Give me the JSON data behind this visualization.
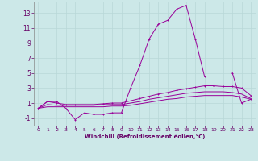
{
  "x": [
    0,
    1,
    2,
    3,
    4,
    5,
    6,
    7,
    8,
    9,
    10,
    11,
    12,
    13,
    14,
    15,
    16,
    17,
    18,
    19,
    20,
    21,
    22,
    23
  ],
  "line_main": [
    0.3,
    1.2,
    1.2,
    0.3,
    -1.2,
    -0.3,
    -0.5,
    -0.5,
    -0.3,
    -0.3,
    3.0,
    6.0,
    9.5,
    11.5,
    12.0,
    13.5,
    14.0,
    9.5,
    4.5,
    null,
    null,
    5.0,
    1.0,
    1.5
  ],
  "line_a": [
    0.3,
    1.2,
    1.0,
    0.8,
    0.8,
    0.8,
    0.8,
    0.9,
    1.0,
    1.0,
    1.3,
    1.6,
    1.9,
    2.2,
    2.4,
    2.7,
    2.9,
    3.1,
    3.3,
    3.3,
    3.2,
    3.2,
    3.0,
    2.0
  ],
  "line_b": [
    0.3,
    0.8,
    0.7,
    0.7,
    0.7,
    0.7,
    0.7,
    0.8,
    0.8,
    0.8,
    1.0,
    1.2,
    1.5,
    1.7,
    1.9,
    2.1,
    2.3,
    2.4,
    2.5,
    2.5,
    2.5,
    2.4,
    2.2,
    1.6
  ],
  "line_c": [
    0.3,
    0.5,
    0.5,
    0.5,
    0.5,
    0.5,
    0.5,
    0.5,
    0.6,
    0.6,
    0.7,
    0.9,
    1.1,
    1.3,
    1.5,
    1.6,
    1.8,
    1.9,
    2.0,
    2.0,
    2.0,
    2.0,
    1.8,
    1.5
  ],
  "bg_color": "#cce8e8",
  "line_color": "#990099",
  "grid_color": "#b8d8d8",
  "xlabel": "Windchill (Refroidissement éolien,°C)",
  "xlabel_color": "#660066",
  "tick_color": "#660066",
  "ylim": [
    -2,
    14.5
  ],
  "yticks": [
    -1,
    1,
    3,
    5,
    7,
    9,
    11,
    13
  ],
  "xlim": [
    -0.5,
    23.5
  ],
  "xticks": [
    0,
    1,
    2,
    3,
    4,
    5,
    6,
    7,
    8,
    9,
    10,
    11,
    12,
    13,
    14,
    15,
    16,
    17,
    18,
    19,
    20,
    21,
    22,
    23
  ]
}
